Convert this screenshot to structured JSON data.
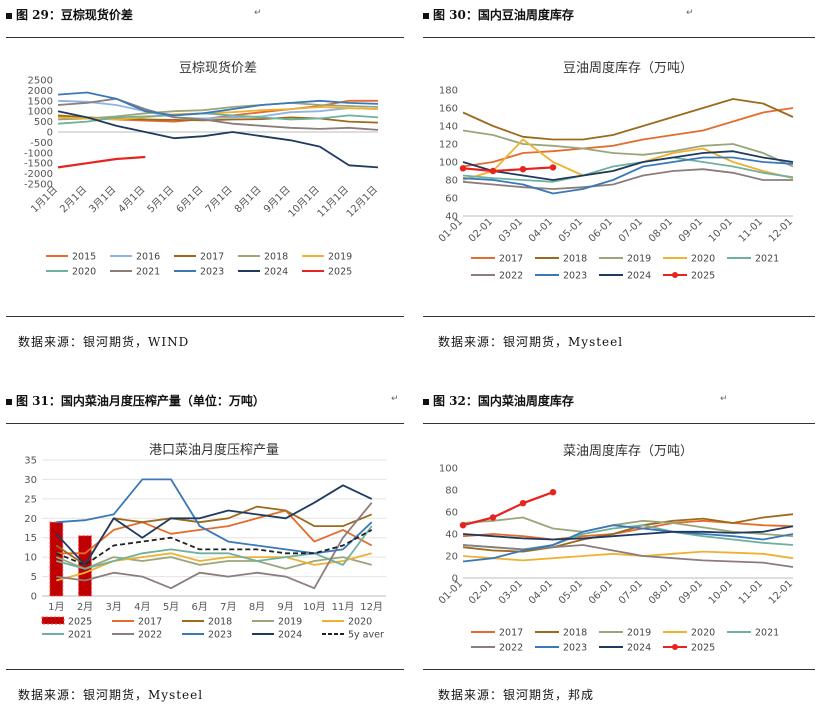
{
  "panels": [
    {
      "title": "图 29：豆棕现货价差",
      "source": "数据来源：银河期货，WIND",
      "chart_data": {
        "type": "line",
        "title": "豆棕现货价差",
        "x": [
          "1月1日",
          "2月1日",
          "3月1日",
          "4月1日",
          "5月1日",
          "6月1日",
          "7月1日",
          "8月1日",
          "9月1日",
          "10月1日",
          "11月1日",
          "12月1日"
        ],
        "ylim": [
          -2500,
          2500
        ],
        "yticks": [
          -2500,
          -2000,
          -1500,
          -1000,
          -500,
          0,
          500,
          1000,
          1500,
          2000,
          2500
        ],
        "legend": "bottom",
        "series": [
          {
            "name": "2015",
            "color": "#E46C2D",
            "values": [
              750,
              680,
              600,
              550,
              500,
              620,
              800,
              950,
              1100,
              1250,
              1500,
              1500
            ]
          },
          {
            "name": "2016",
            "color": "#8EB4E3",
            "values": [
              1500,
              1450,
              1300,
              1000,
              700,
              650,
              700,
              750,
              950,
              1000,
              1150,
              1100
            ]
          },
          {
            "name": "2017",
            "color": "#9C6A1C",
            "values": [
              800,
              700,
              650,
              600,
              580,
              560,
              600,
              620,
              700,
              650,
              500,
              450
            ]
          },
          {
            "name": "2018",
            "color": "#9AA67A",
            "values": [
              600,
              650,
              750,
              900,
              1000,
              1050,
              1200,
              1300,
              1400,
              1300,
              1250,
              1200
            ]
          },
          {
            "name": "2019",
            "color": "#F0B133",
            "values": [
              700,
              650,
              600,
              700,
              850,
              900,
              950,
              1050,
              1100,
              1200,
              1150,
              1100
            ]
          },
          {
            "name": "2020",
            "color": "#6EB19E",
            "values": [
              400,
              500,
              700,
              750,
              800,
              900,
              800,
              700,
              600,
              650,
              800,
              700
            ]
          },
          {
            "name": "2021",
            "color": "#8C7D7D",
            "values": [
              1300,
              1400,
              1600,
              1100,
              700,
              600,
              400,
              300,
              200,
              150,
              200,
              100
            ]
          },
          {
            "name": "2023",
            "color": "#3A78B8",
            "values": [
              1800,
              1900,
              1600,
              1000,
              800,
              900,
              1100,
              1300,
              1400,
              1500,
              1400,
              1350
            ]
          },
          {
            "name": "2024",
            "color": "#1F3A5F",
            "values": [
              1000,
              700,
              300,
              0,
              -300,
              -200,
              0,
              -200,
              -400,
              -700,
              -1600,
              -1700
            ]
          },
          {
            "name": "2025",
            "color": "#E8221E",
            "values": [
              -1700,
              -1500,
              -1300,
              -1200,
              null,
              null,
              null,
              null,
              null,
              null,
              null,
              null
            ]
          }
        ]
      }
    },
    {
      "title": "图 30：国内豆油周度库存",
      "source": "数据来源：银河期货，Mysteel",
      "chart_data": {
        "type": "line",
        "title": "豆油周度库存（万吨）",
        "x": [
          "01-01",
          "02-01",
          "03-01",
          "04-01",
          "05-01",
          "06-01",
          "07-01",
          "08-01",
          "09-01",
          "10-01",
          "11-01",
          "12-01"
        ],
        "ylim": [
          40,
          180
        ],
        "yticks": [
          40,
          60,
          80,
          100,
          120,
          140,
          160,
          180
        ],
        "legend": "bottom",
        "series": [
          {
            "name": "2017",
            "color": "#E46C2D",
            "values": [
              95,
              100,
              110,
              112,
              115,
              118,
              125,
              130,
              135,
              145,
              155,
              160
            ]
          },
          {
            "name": "2018",
            "color": "#9C6A1C",
            "values": [
              155,
              140,
              128,
              125,
              125,
              130,
              140,
              150,
              160,
              170,
              165,
              150
            ]
          },
          {
            "name": "2019",
            "color": "#9AA67A",
            "values": [
              135,
              130,
              120,
              118,
              115,
              110,
              108,
              112,
              118,
              120,
              110,
              95
            ]
          },
          {
            "name": "2020",
            "color": "#F0B133",
            "values": [
              80,
              90,
              125,
              100,
              85,
              90,
              100,
              110,
              115,
              100,
              90,
              82
            ]
          },
          {
            "name": "2021",
            "color": "#6EB19E",
            "values": [
              85,
              82,
              80,
              78,
              85,
              95,
              100,
              105,
              100,
              95,
              88,
              83
            ]
          },
          {
            "name": "2022",
            "color": "#8C7D7D",
            "values": [
              78,
              75,
              72,
              70,
              72,
              75,
              85,
              90,
              92,
              88,
              80,
              80
            ]
          },
          {
            "name": "2023",
            "color": "#3A78B8",
            "values": [
              82,
              80,
              75,
              65,
              70,
              80,
              95,
              100,
              105,
              105,
              100,
              98
            ]
          },
          {
            "name": "2024",
            "color": "#1F3A5F",
            "values": [
              100,
              90,
              85,
              80,
              85,
              90,
              100,
              105,
              110,
              112,
              105,
              100
            ]
          },
          {
            "name": "2025",
            "color": "#E8221E",
            "values": [
              93,
              90,
              92,
              94,
              null,
              null,
              null,
              null,
              null,
              null,
              null,
              null
            ]
          }
        ]
      }
    },
    {
      "title": "图 31：国内菜油月度压榨产量（单位：万吨）",
      "source": "数据来源：银河期货，Mysteel",
      "chart_data": {
        "type": "bar+line",
        "title": "港口菜油月度压榨产量",
        "categories": [
          "1月",
          "2月",
          "3月",
          "4月",
          "5月",
          "6月",
          "7月",
          "8月",
          "9月",
          "10月",
          "11月",
          "12月"
        ],
        "ylim": [
          0,
          35
        ],
        "yticks": [
          0,
          5,
          10,
          15,
          20,
          25,
          30,
          35
        ],
        "legend": "bottom",
        "bars": {
          "name": "2025",
          "color": "#C00000",
          "values": [
            19,
            15.5,
            null,
            null,
            null,
            null,
            null,
            null,
            null,
            null,
            null,
            null
          ]
        },
        "series": [
          {
            "name": "2017",
            "color": "#E46C2D",
            "values": [
              11,
              11,
              17,
              19,
              16,
              17,
              18,
              20,
              22,
              14,
              17,
              13
            ]
          },
          {
            "name": "2018",
            "color": "#9C6A1C",
            "values": [
              13,
              8,
              20,
              19,
              20,
              19,
              20,
              23,
              22,
              18,
              18,
              21
            ]
          },
          {
            "name": "2019",
            "color": "#9AA67A",
            "values": [
              10,
              7,
              10,
              9,
              10,
              8,
              9,
              9,
              7,
              9,
              10,
              8
            ]
          },
          {
            "name": "2020",
            "color": "#F0B133",
            "values": [
              4,
              6,
              9,
              10,
              11,
              9,
              10,
              10,
              10,
              8,
              9,
              11
            ]
          },
          {
            "name": "2021",
            "color": "#6EB19E",
            "values": [
              9,
              7,
              9,
              11,
              12,
              11,
              11,
              9,
              10,
              11,
              8,
              18
            ]
          },
          {
            "name": "2022",
            "color": "#8C7D7D",
            "values": [
              5,
              4,
              6,
              5,
              2,
              6,
              5,
              6,
              5,
              2,
              15,
              24
            ]
          },
          {
            "name": "2023",
            "color": "#3A78B8",
            "values": [
              19,
              19.5,
              21,
              30,
              30,
              18,
              14,
              13,
              12,
              11,
              12,
              19
            ]
          },
          {
            "name": "2024",
            "color": "#1F3A5F",
            "values": [
              16,
              8,
              20,
              15,
              20,
              20,
              22,
              21,
              20,
              24,
              28.5,
              25
            ]
          },
          {
            "name": "5y aver",
            "color": "#222222",
            "dashed": true,
            "values": [
              11,
              8,
              13,
              14,
              15,
              12,
              12,
              12,
              11,
              11,
              13,
              17
            ]
          }
        ]
      }
    },
    {
      "title": "图 32：国内菜油周度库存",
      "source": "数据来源：银河期货，邦成",
      "chart_data": {
        "type": "line",
        "title": "菜油周度库存（万吨）",
        "x": [
          "01-01",
          "02-01",
          "03-01",
          "04-01",
          "05-01",
          "06-01",
          "07-01",
          "08-01",
          "09-01",
          "10-01",
          "11-01",
          "12-01"
        ],
        "ylim": [
          0,
          100
        ],
        "yticks": [
          0,
          20,
          40,
          60,
          80,
          100
        ],
        "legend": "bottom",
        "series": [
          {
            "name": "2017",
            "color": "#E46C2D",
            "values": [
              38,
              40,
              38,
              35,
              38,
              40,
              45,
              50,
              52,
              50,
              48,
              47
            ]
          },
          {
            "name": "2018",
            "color": "#9C6A1C",
            "values": [
              28,
              25,
              24,
              28,
              35,
              40,
              48,
              52,
              54,
              50,
              55,
              58
            ]
          },
          {
            "name": "2019",
            "color": "#9AA67A",
            "values": [
              50,
              52,
              55,
              45,
              42,
              48,
              52,
              50,
              46,
              42,
              40,
              38
            ]
          },
          {
            "name": "2020",
            "color": "#F0B133",
            "values": [
              20,
              18,
              16,
              18,
              20,
              22,
              20,
              22,
              24,
              23,
              22,
              18
            ]
          },
          {
            "name": "2021",
            "color": "#6EB19E",
            "values": [
              30,
              28,
              26,
              30,
              40,
              45,
              48,
              42,
              38,
              35,
              32,
              30
            ]
          },
          {
            "name": "2022",
            "color": "#8C7D7D",
            "values": [
              30,
              28,
              26,
              28,
              30,
              25,
              20,
              18,
              16,
              15,
              14,
              10
            ]
          },
          {
            "name": "2023",
            "color": "#3A78B8",
            "values": [
              15,
              18,
              25,
              30,
              42,
              48,
              45,
              42,
              40,
              38,
              35,
              40
            ]
          },
          {
            "name": "2024",
            "color": "#1F3A5F",
            "values": [
              40,
              38,
              36,
              35,
              36,
              38,
              40,
              42,
              42,
              41,
              42,
              47
            ]
          },
          {
            "name": "2025",
            "color": "#E8221E",
            "values": [
              48,
              55,
              68,
              78,
              null,
              null,
              null,
              null,
              null,
              null,
              null,
              null
            ]
          }
        ]
      }
    }
  ]
}
